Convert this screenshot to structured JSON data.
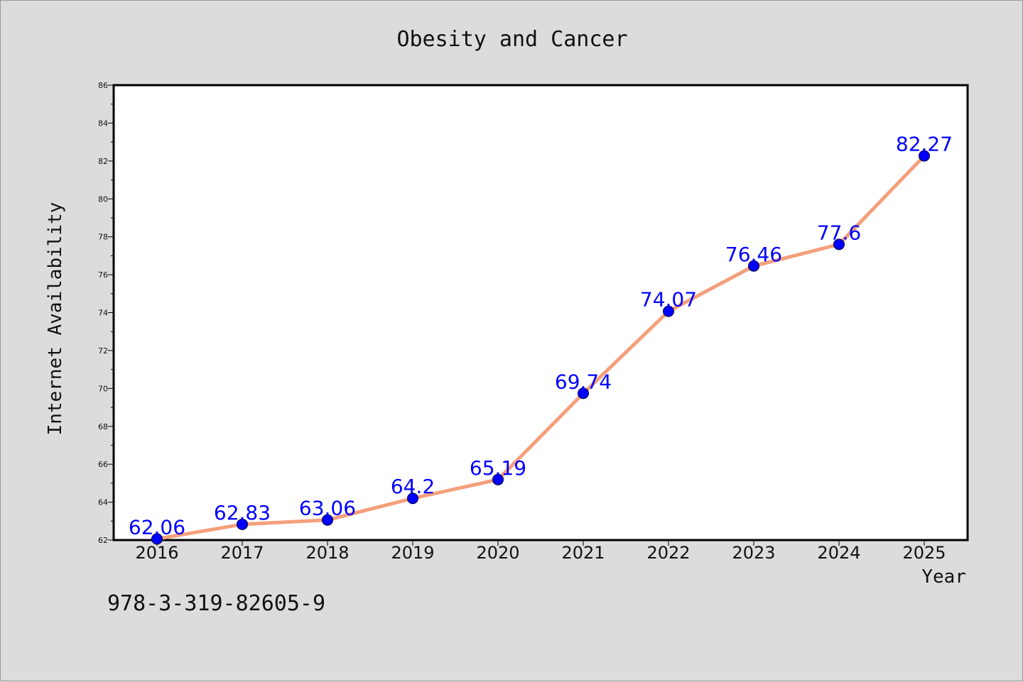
{
  "chart_data": {
    "type": "line",
    "title": "Obesity and Cancer",
    "xlabel": "Year",
    "ylabel": "Internet Availability",
    "categories": [
      "2016",
      "2017",
      "2018",
      "2019",
      "2020",
      "2021",
      "2022",
      "2023",
      "2024",
      "2025"
    ],
    "values": [
      62.06,
      62.83,
      63.06,
      64.2,
      65.19,
      69.74,
      74.07,
      76.46,
      77.6,
      82.27
    ],
    "data_labels": [
      "62.06",
      "62.83",
      "63.06",
      "64.2",
      "65.19",
      "69.74",
      "74.07",
      "76.46",
      "77.6",
      "82.27"
    ],
    "ylim": [
      62,
      86
    ],
    "yticks": [
      62,
      64,
      66,
      68,
      70,
      72,
      74,
      76,
      78,
      80,
      82,
      84,
      86
    ],
    "grid": false,
    "legend": "none",
    "colors": {
      "line": "#f4a07c",
      "marker": "#0000ff",
      "label": "#0000ff",
      "plot_bg": "#ffffff",
      "figure_bg": "#dcdcdc"
    }
  },
  "footnote": "978-3-319-82605-9"
}
